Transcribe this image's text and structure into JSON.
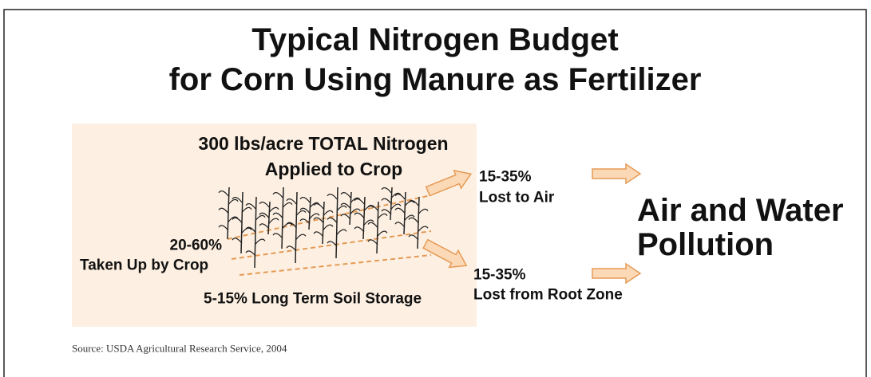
{
  "title": {
    "line1": "Typical Nitrogen Budget",
    "line2": "for Corn Using Manure as Fertilizer"
  },
  "applied": {
    "line1": "300 lbs/acre TOTAL Nitrogen",
    "line2": "Applied to Crop"
  },
  "air_loss": {
    "percent": "15-35%",
    "label": "Lost to Air"
  },
  "root_loss": {
    "percent": "15-35%",
    "label": "Lost from Root Zone"
  },
  "crop_uptake": {
    "percent": "20-60%",
    "label": "Taken Up by Crop"
  },
  "soil_storage": "5-15% Long Term Soil Storage",
  "pollution": {
    "line1": "Air and Water",
    "line2": "Pollution"
  },
  "source": "Source: USDA Agricultural Research Service, 2004"
}
